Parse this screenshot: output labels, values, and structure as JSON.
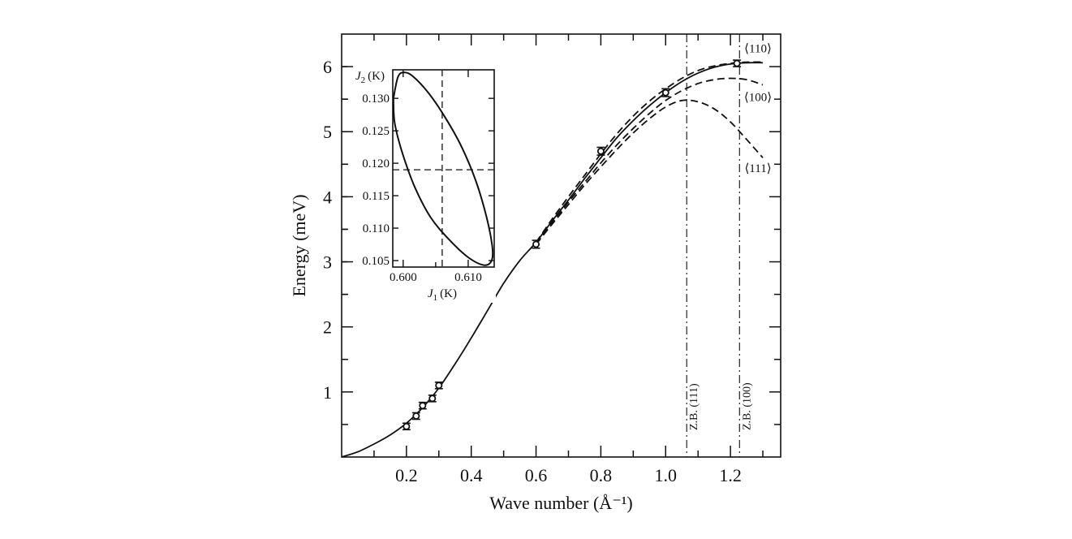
{
  "chart_data": [
    {
      "type": "line",
      "title": "",
      "xlabel": "Wave number (Å⁻¹)",
      "ylabel": "Energy (meV)",
      "xlim": [
        0,
        1.355
      ],
      "ylim": [
        0,
        6.5
      ],
      "grid": false,
      "x_ticks_major": [
        0.2,
        0.4,
        0.6,
        0.8,
        1.0,
        1.2
      ],
      "x_tick_labels": [
        "0.2",
        "0.4",
        "0.6",
        "0.8",
        "1.0",
        "1.2"
      ],
      "x_ticks_minor": [
        0.1,
        0.3,
        0.5,
        0.7,
        0.9,
        1.1,
        1.3
      ],
      "y_ticks_major": [
        1,
        2,
        3,
        4,
        5,
        6
      ],
      "y_tick_labels": [
        "1",
        "2",
        "3",
        "4",
        "5",
        "6"
      ],
      "y_ticks_minor": [
        0.5,
        1.5,
        2.5,
        3.5,
        4.5,
        5.5
      ],
      "measured_points": {
        "name": "measured",
        "x": [
          0.2,
          0.23,
          0.25,
          0.28,
          0.3,
          0.6,
          0.8,
          1.0,
          1.22
        ],
        "y": [
          0.47,
          0.63,
          0.79,
          0.9,
          1.1,
          3.27,
          4.7,
          5.6,
          6.05
        ],
        "yerr": [
          0.05,
          0.05,
          0.05,
          0.05,
          0.05,
          0.06,
          0.06,
          0.06,
          0.05
        ]
      },
      "series": [
        {
          "name": "fit",
          "style": "solid",
          "x": [
            0,
            0.05,
            0.1,
            0.15,
            0.2,
            0.25,
            0.3,
            0.35,
            0.4,
            0.45,
            0.5,
            0.55,
            0.6,
            0.65,
            0.7,
            0.75,
            0.8,
            0.85,
            0.9,
            0.95,
            1.0,
            1.05,
            1.1,
            1.15,
            1.2,
            1.25,
            1.3
          ],
          "y": [
            0,
            0.08,
            0.2,
            0.34,
            0.52,
            0.76,
            1.06,
            1.43,
            1.83,
            2.25,
            2.67,
            3.02,
            3.3,
            3.63,
            3.95,
            4.28,
            4.6,
            4.91,
            5.17,
            5.4,
            5.6,
            5.77,
            5.9,
            5.99,
            6.04,
            6.06,
            6.06
          ]
        },
        {
          "name": "⟨110⟩",
          "style": "dashed",
          "x": [
            0.6,
            0.65,
            0.7,
            0.75,
            0.8,
            0.85,
            0.9,
            0.95,
            1.0,
            1.05,
            1.1,
            1.15,
            1.2,
            1.25,
            1.3
          ],
          "y": [
            3.3,
            3.66,
            4.0,
            4.33,
            4.66,
            4.97,
            5.24,
            5.47,
            5.66,
            5.82,
            5.94,
            6.01,
            6.05,
            6.07,
            6.07
          ]
        },
        {
          "name": "⟨100⟩",
          "style": "dashed",
          "x": [
            0.6,
            0.65,
            0.7,
            0.75,
            0.8,
            0.85,
            0.9,
            0.95,
            1.0,
            1.05,
            1.1,
            1.15,
            1.2,
            1.25,
            1.3
          ],
          "y": [
            3.28,
            3.6,
            3.92,
            4.22,
            4.52,
            4.8,
            5.05,
            5.28,
            5.48,
            5.63,
            5.74,
            5.8,
            5.82,
            5.8,
            5.72
          ]
        },
        {
          "name": "⟨111⟩",
          "style": "dashed",
          "x": [
            0.6,
            0.65,
            0.7,
            0.75,
            0.8,
            0.85,
            0.9,
            0.95,
            1.0,
            1.05,
            1.1,
            1.15,
            1.2,
            1.25,
            1.3
          ],
          "y": [
            3.27,
            3.58,
            3.88,
            4.18,
            4.46,
            4.73,
            4.98,
            5.2,
            5.38,
            5.48,
            5.46,
            5.35,
            5.15,
            4.88,
            4.6
          ]
        }
      ],
      "annotations": {
        "curve_labels": [
          "⟨110⟩",
          "⟨100⟩",
          "⟨111⟩"
        ],
        "zone_boundaries": [
          {
            "label": "Z.B. (111)",
            "x": 1.065
          },
          {
            "label": "Z.B. (100)",
            "x": 1.228
          }
        ]
      }
    },
    {
      "type": "line",
      "title": "",
      "xlabel_main": "J",
      "xlabel_sub": "1",
      "xlabel_unit": "(K)",
      "ylabel_main": "J",
      "ylabel_sub": "2",
      "ylabel_unit": "(K)",
      "xlim": [
        0.5984,
        0.614
      ],
      "ylim": [
        0.104,
        0.1344
      ],
      "grid": false,
      "x_ticks_major": [
        0.6,
        0.61
      ],
      "x_tick_labels": [
        "0.600",
        "0.610"
      ],
      "x_ticks_minor": [
        0.605
      ],
      "y_ticks_major": [
        0.105,
        0.11,
        0.115,
        0.12,
        0.125,
        0.13
      ],
      "y_tick_labels": [
        "0.105",
        "0.110",
        "0.115",
        "0.120",
        "0.125",
        "0.130"
      ],
      "ellipse": {
        "name": "confidence-ellipse",
        "center": [
          0.6061,
          0.1191
        ],
        "points_x": [
          0.5985,
          0.5992,
          0.6001,
          0.6015,
          0.604,
          0.6065,
          0.609,
          0.6112,
          0.6128,
          0.6137,
          0.6136,
          0.6124,
          0.61,
          0.607,
          0.6042,
          0.6018,
          0.5999,
          0.5987,
          0.5985
        ],
        "points_y": [
          0.13,
          0.1333,
          0.134,
          0.1334,
          0.1307,
          0.127,
          0.1225,
          0.1172,
          0.1118,
          0.1072,
          0.105,
          0.1043,
          0.1055,
          0.1083,
          0.1117,
          0.1163,
          0.1215,
          0.1262,
          0.13
        ]
      },
      "crosshair": {
        "x": 0.606,
        "y": 0.119
      }
    }
  ]
}
